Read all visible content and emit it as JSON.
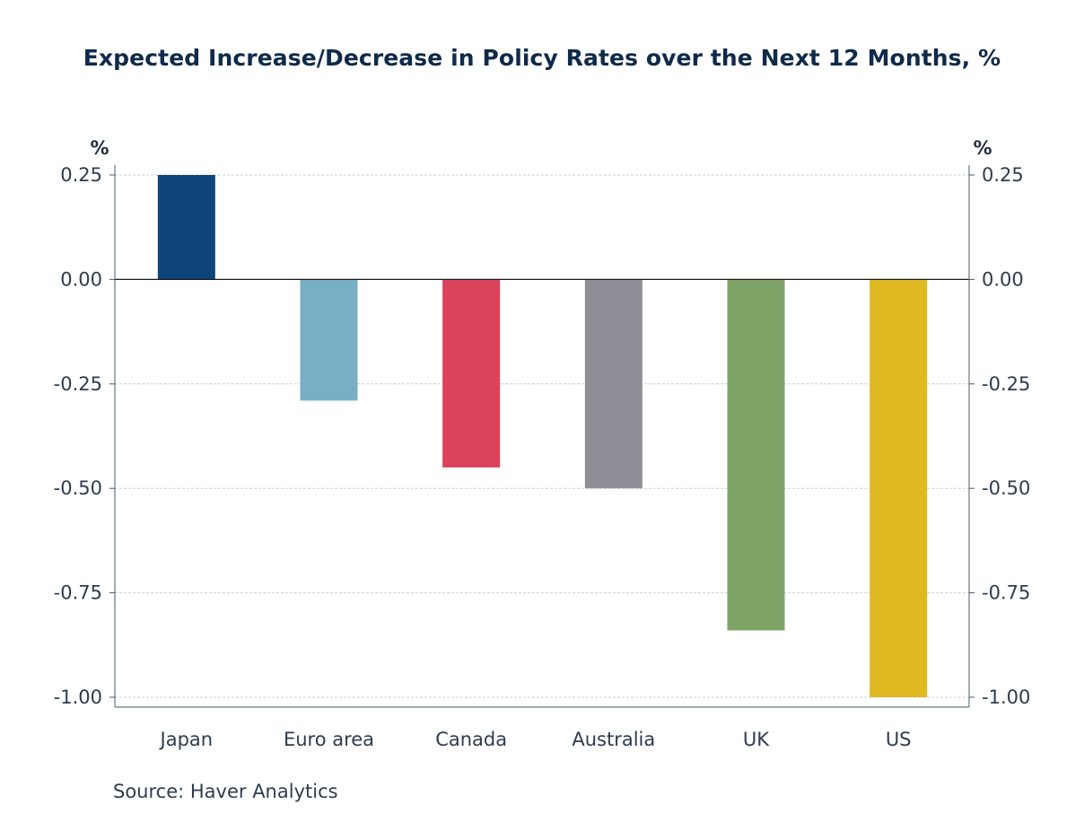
{
  "chart_data": {
    "type": "bar",
    "title": "Expected Increase/Decrease in Policy Rates over the Next 12 Months, %",
    "ylabel_left": "%",
    "ylabel_right": "%",
    "categories": [
      "Japan",
      "Euro area",
      "Canada",
      "Australia",
      "UK",
      "US"
    ],
    "values": [
      0.25,
      -0.29,
      -0.45,
      -0.5,
      -0.84,
      -1.0
    ],
    "colors": [
      "#0e4479",
      "#76afc6",
      "#dc425c",
      "#8f8e96",
      "#7ea367",
      "#dfb922"
    ],
    "ylim": [
      -1.0,
      0.25
    ],
    "yticks": [
      "0.25",
      "0.00",
      "-0.25",
      "-0.50",
      "-0.75",
      "-1.00"
    ],
    "ytick_values": [
      0.25,
      0,
      -0.25,
      -0.5,
      -0.75,
      -1.0
    ],
    "grid": true,
    "source": "Source:  Haver Analytics"
  }
}
